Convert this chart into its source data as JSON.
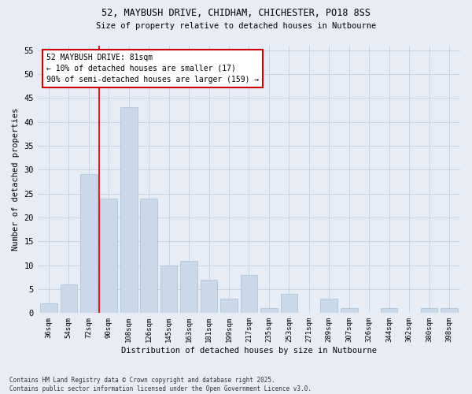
{
  "title_line1": "52, MAYBUSH DRIVE, CHIDHAM, CHICHESTER, PO18 8SS",
  "title_line2": "Size of property relative to detached houses in Nutbourne",
  "xlabel": "Distribution of detached houses by size in Nutbourne",
  "ylabel": "Number of detached properties",
  "categories": [
    "36sqm",
    "54sqm",
    "72sqm",
    "90sqm",
    "108sqm",
    "126sqm",
    "145sqm",
    "163sqm",
    "181sqm",
    "199sqm",
    "217sqm",
    "235sqm",
    "253sqm",
    "271sqm",
    "289sqm",
    "307sqm",
    "326sqm",
    "344sqm",
    "362sqm",
    "380sqm",
    "398sqm"
  ],
  "values": [
    2,
    6,
    29,
    24,
    43,
    24,
    10,
    11,
    7,
    3,
    8,
    1,
    4,
    0,
    3,
    1,
    0,
    1,
    0,
    1,
    1
  ],
  "bar_color": "#c9d9ea",
  "bar_edge_color": "#a8bdd0",
  "grid_color": "#c5cfe0",
  "background_color": "#e8edf5",
  "red_line_x": 2.5,
  "annotation_title": "52 MAYBUSH DRIVE: 81sqm",
  "annotation_line1": "← 10% of detached houses are smaller (17)",
  "annotation_line2": "90% of semi-detached houses are larger (159) →",
  "annotation_box_facecolor": "#ffffff",
  "annotation_border_color": "#cc0000",
  "red_line_color": "#cc0000",
  "ylim": [
    0,
    56
  ],
  "yticks": [
    0,
    5,
    10,
    15,
    20,
    25,
    30,
    35,
    40,
    45,
    50,
    55
  ],
  "footer_line1": "Contains HM Land Registry data © Crown copyright and database right 2025.",
  "footer_line2": "Contains public sector information licensed under the Open Government Licence v3.0."
}
